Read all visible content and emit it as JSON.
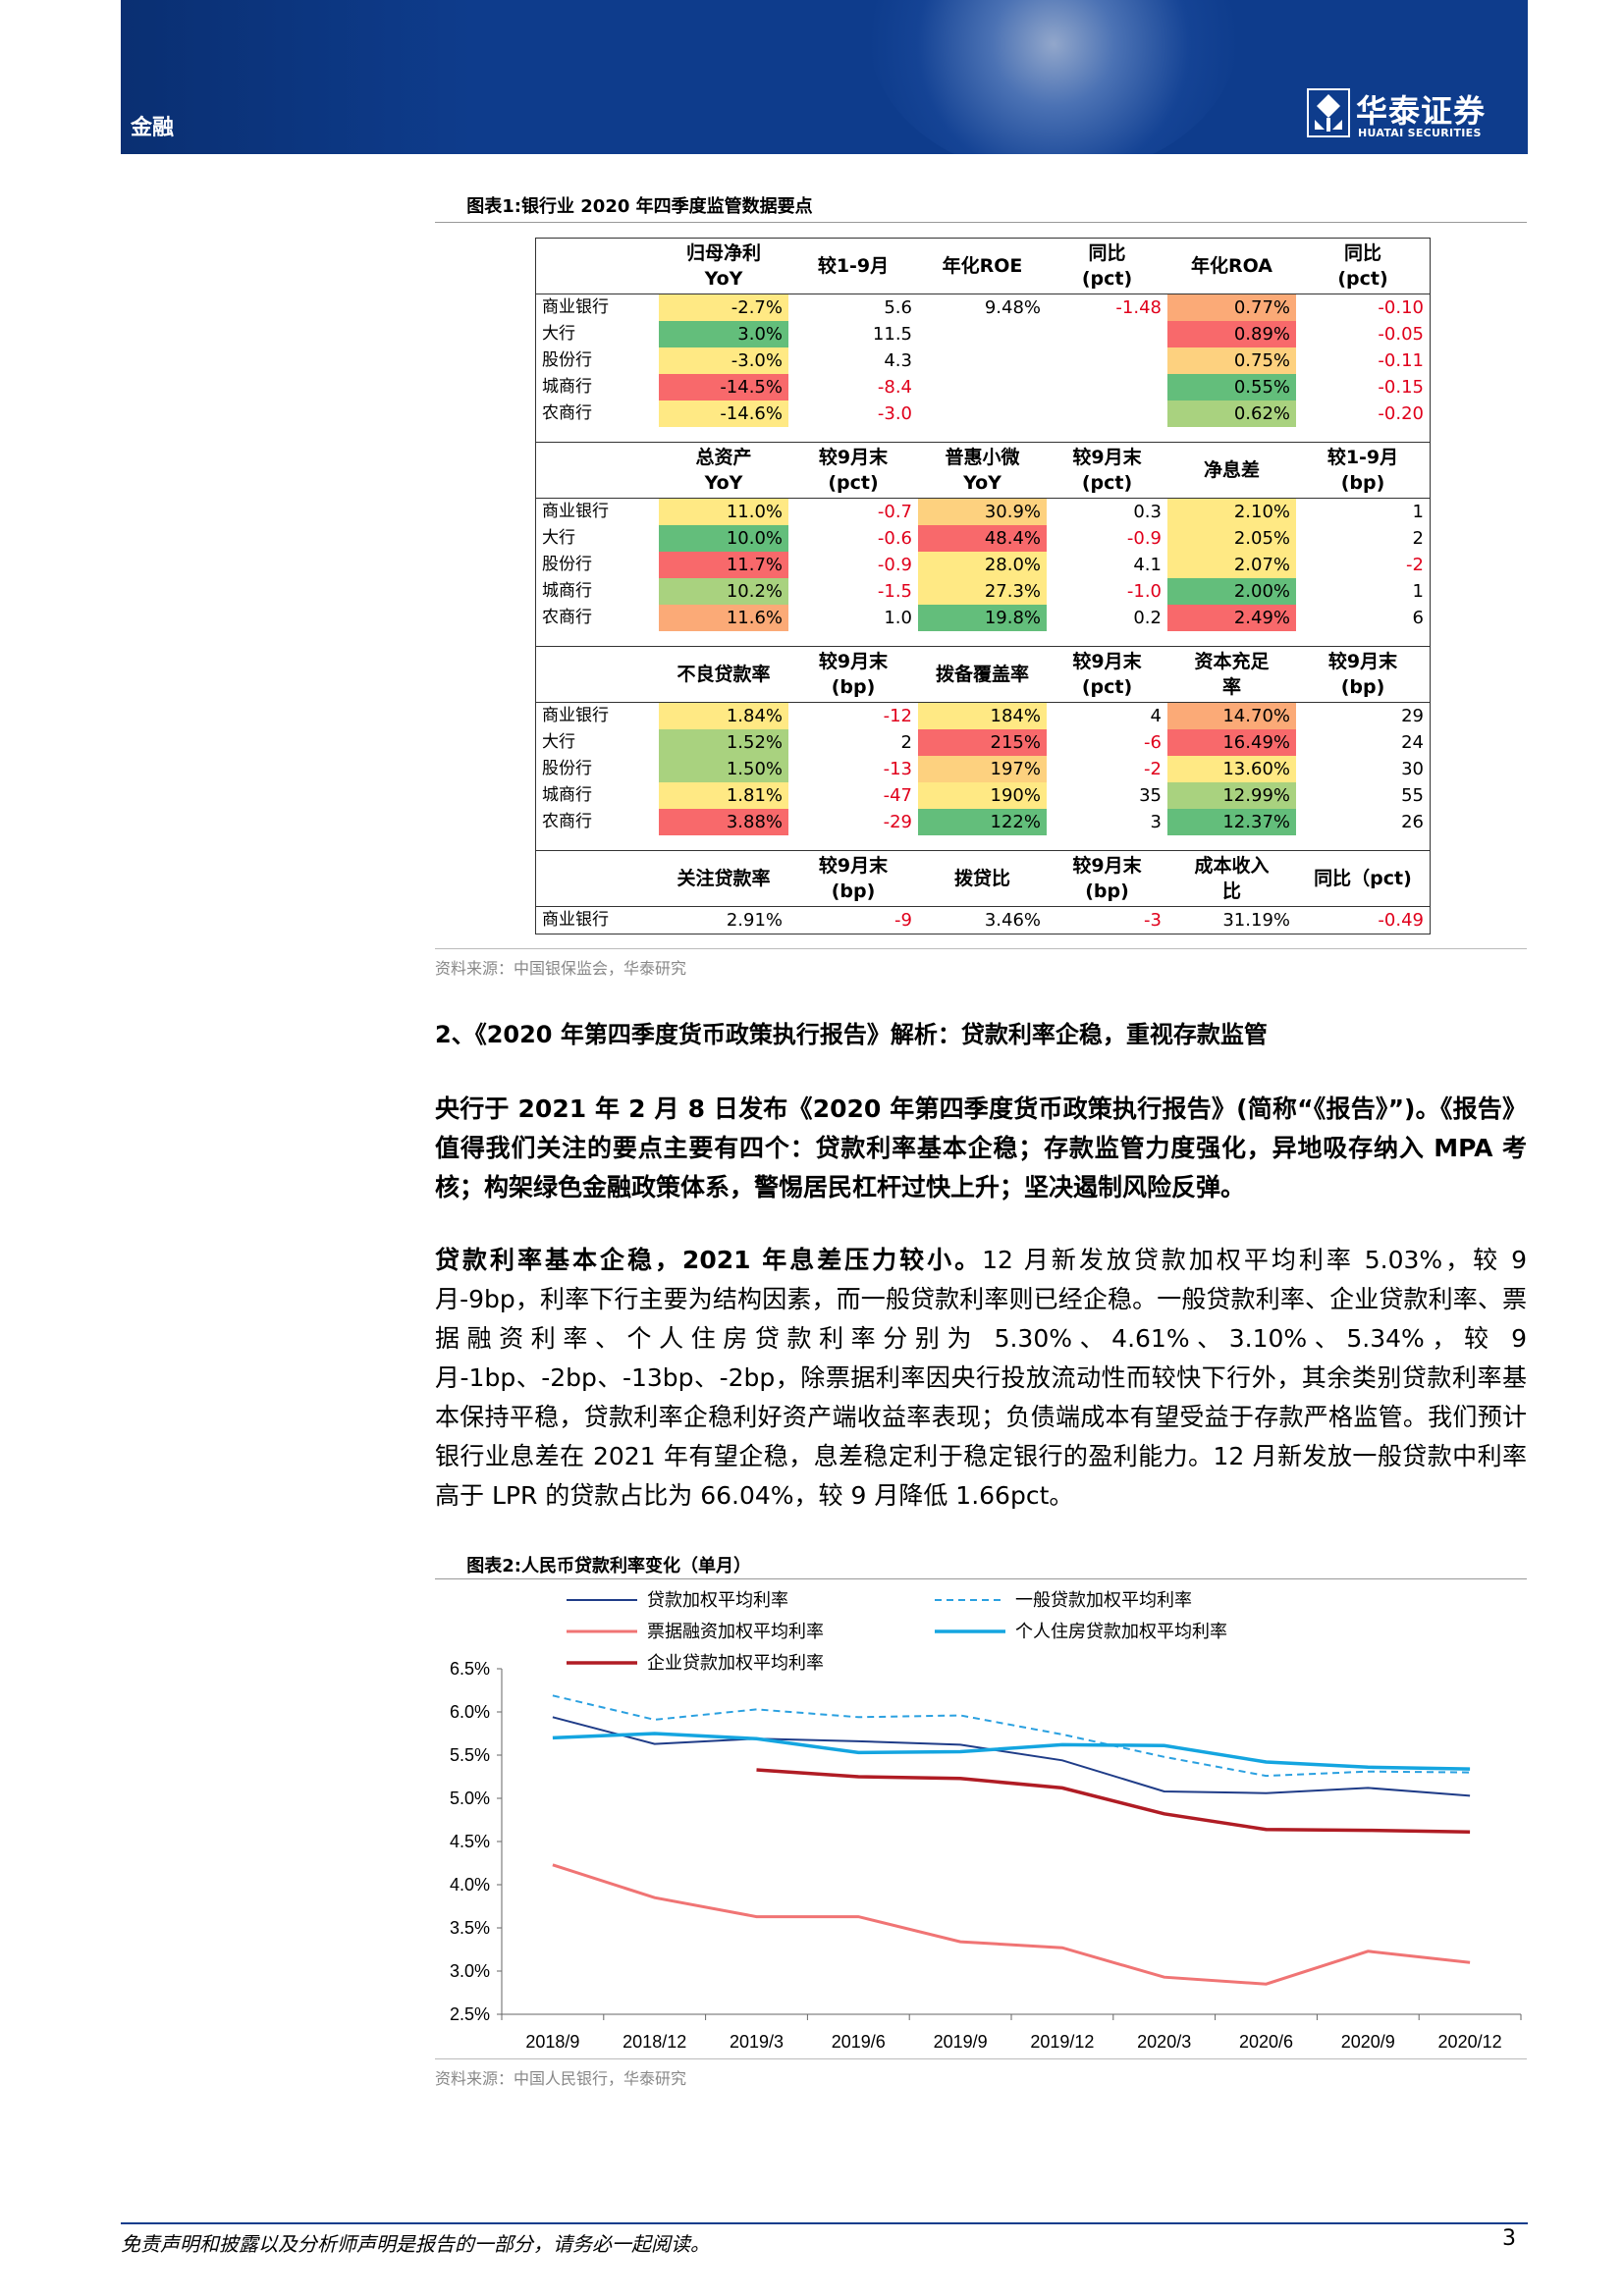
{
  "header": {
    "section": "金融",
    "logo_cn": "华泰证券",
    "logo_en": "HUATAI SECURITIES"
  },
  "figure1": {
    "label": "图表1:",
    "title": "银行业 2020 年四季度监管数据要点",
    "groups": [
      {
        "headers": [
          "",
          "归母净利\nYoY",
          "较1-9月",
          "年化ROE",
          "同比\n(pct)",
          "年化ROA",
          "同比\n(pct)"
        ],
        "rows": [
          {
            "name": "商业银行",
            "v": [
              "-2.7%",
              "5.6",
              "9.48%",
              "-1.48",
              "0.77%",
              "-0.10"
            ]
          },
          {
            "name": "大行",
            "v": [
              "3.0%",
              "11.5",
              "",
              "",
              "0.89%",
              "-0.05"
            ]
          },
          {
            "name": "股份行",
            "v": [
              "-3.0%",
              "4.3",
              "",
              "",
              "0.75%",
              "-0.11"
            ]
          },
          {
            "name": "城商行",
            "v": [
              "-14.5%",
              "-8.4",
              "",
              "",
              "0.55%",
              "-0.15"
            ]
          },
          {
            "name": "农商行",
            "v": [
              "-14.6%",
              "-3.0",
              "",
              "",
              "0.62%",
              "-0.20"
            ]
          }
        ]
      },
      {
        "headers": [
          "",
          "总资产\nYoY",
          "较9月末\n(pct)",
          "普惠小微\nYoY",
          "较9月末\n(pct)",
          "净息差",
          "较1-9月\n(bp)"
        ],
        "rows": [
          {
            "name": "商业银行",
            "v": [
              "11.0%",
              "-0.7",
              "30.9%",
              "0.3",
              "2.10%",
              "1"
            ]
          },
          {
            "name": "大行",
            "v": [
              "10.0%",
              "-0.6",
              "48.4%",
              "-0.9",
              "2.05%",
              "2"
            ]
          },
          {
            "name": "股份行",
            "v": [
              "11.7%",
              "-0.9",
              "28.0%",
              "4.1",
              "2.07%",
              "-2"
            ]
          },
          {
            "name": "城商行",
            "v": [
              "10.2%",
              "-1.5",
              "27.3%",
              "-1.0",
              "2.00%",
              "1"
            ]
          },
          {
            "name": "农商行",
            "v": [
              "11.6%",
              "1.0",
              "19.8%",
              "0.2",
              "2.49%",
              "6"
            ]
          }
        ]
      },
      {
        "headers": [
          "",
          "不良贷款率",
          "较9月末\n(bp)",
          "拨备覆盖率",
          "较9月末\n(pct)",
          "资本充足\n率",
          "较9月末\n(bp)"
        ],
        "rows": [
          {
            "name": "商业银行",
            "v": [
              "1.84%",
              "-12",
              "184%",
              "4",
              "14.70%",
              "29"
            ]
          },
          {
            "name": "大行",
            "v": [
              "1.52%",
              "2",
              "215%",
              "-6",
              "16.49%",
              "24"
            ]
          },
          {
            "name": "股份行",
            "v": [
              "1.50%",
              "-13",
              "197%",
              "-2",
              "13.60%",
              "30"
            ]
          },
          {
            "name": "城商行",
            "v": [
              "1.81%",
              "-47",
              "190%",
              "35",
              "12.99%",
              "55"
            ]
          },
          {
            "name": "农商行",
            "v": [
              "3.88%",
              "-29",
              "122%",
              "3",
              "12.37%",
              "26"
            ]
          }
        ]
      },
      {
        "headers": [
          "",
          "关注贷款率",
          "较9月末\n(bp)",
          "拨贷比",
          "较9月末\n(bp)",
          "成本收入\n比",
          "同比（pct)"
        ],
        "rows": [
          {
            "name": "商业银行",
            "v": [
              "2.91%",
              "-9",
              "3.46%",
              "-3",
              "31.19%",
              "-0.49"
            ]
          }
        ]
      }
    ],
    "source": "资料来源：中国银保监会，华泰研究"
  },
  "section": {
    "heading": "2、《2020 年第四季度货币政策执行报告》解析：贷款利率企稳，重视存款监管"
  },
  "para1": {
    "bold": "央行于 2021 年 2 月 8 日发布《2020 年第四季度货币政策执行报告》(简称“《报告》”)。《报告》值得我们关注的要点主要有四个：贷款利率基本企稳；存款监管力度强化，异地吸存纳入 MPA 考核；构架绿色金融政策体系，警惕居民杠杆过快上升；坚决遏制风险反弹。"
  },
  "para2": {
    "bold": "贷款利率基本企稳，2021 年息差压力较小。",
    "text": "12 月新发放贷款加权平均利率 5.03%，较 9 月-9bp，利率下行主要为结构因素，而一般贷款利率则已经企稳。一般贷款利率、企业贷款利率、票据融资利率、个人住房贷款利率分别为 5.30%、4.61%、3.10%、5.34%，较 9 月-1bp、-2bp、-13bp、-2bp，除票据利率因央行投放流动性而较快下行外，其余类别贷款利率基本保持平稳，贷款利率企稳利好资产端收益率表现；负债端成本有望受益于存款严格监管。我们预计银行业息差在 2021 年有望企稳，息差稳定利于稳定银行的盈利能力。12 月新发放一般贷款中利率高于 LPR 的贷款占比为 66.04%，较 9 月降低 1.66pct。"
  },
  "figure2": {
    "label": "图表2:",
    "title": "人民币贷款利率变化（单月）",
    "source": "资料来源：中国人民银行，华泰研究"
  },
  "chart_data": {
    "type": "line",
    "categories": [
      "2018/9",
      "2018/12",
      "2019/3",
      "2019/6",
      "2019/9",
      "2019/12",
      "2020/3",
      "2020/6",
      "2020/9",
      "2020/12"
    ],
    "ylim": [
      2.5,
      6.5
    ],
    "yticks": [
      "2.5%",
      "3.0%",
      "3.5%",
      "4.0%",
      "4.5%",
      "5.0%",
      "5.5%",
      "6.0%",
      "6.5%"
    ],
    "series": [
      {
        "name": "贷款加权平均利率",
        "color": "#1f3c88",
        "dash": "none",
        "width": 2,
        "values": [
          5.94,
          5.63,
          5.69,
          5.66,
          5.62,
          5.44,
          5.08,
          5.06,
          5.12,
          5.03
        ]
      },
      {
        "name": "一般贷款加权平均利率",
        "color": "#2aa0e0",
        "dash": "7,5",
        "width": 2,
        "values": [
          6.19,
          5.91,
          6.03,
          5.94,
          5.96,
          5.74,
          5.48,
          5.26,
          5.31,
          5.3
        ]
      },
      {
        "name": "票据融资加权平均利率",
        "color": "#f07474",
        "dash": "none",
        "width": 3,
        "values": [
          4.23,
          3.85,
          3.63,
          3.63,
          3.34,
          3.27,
          2.93,
          2.85,
          3.23,
          3.1
        ]
      },
      {
        "name": "个人住房贷款加权平均利率",
        "color": "#14a5e0",
        "dash": "none",
        "width": 3.5,
        "values": [
          5.7,
          5.75,
          5.69,
          5.53,
          5.54,
          5.62,
          5.61,
          5.42,
          5.36,
          5.34
        ]
      },
      {
        "name": "企业贷款加权平均利率",
        "color": "#b01c24",
        "dash": "none",
        "width": 3.5,
        "values": [
          null,
          null,
          5.33,
          5.25,
          5.23,
          5.12,
          4.82,
          4.64,
          4.63,
          4.61
        ]
      }
    ]
  },
  "footer": {
    "disclaimer": "免责声明和披露以及分析师声明是报告的一部分，请务必一起阅读。",
    "page": "3"
  }
}
